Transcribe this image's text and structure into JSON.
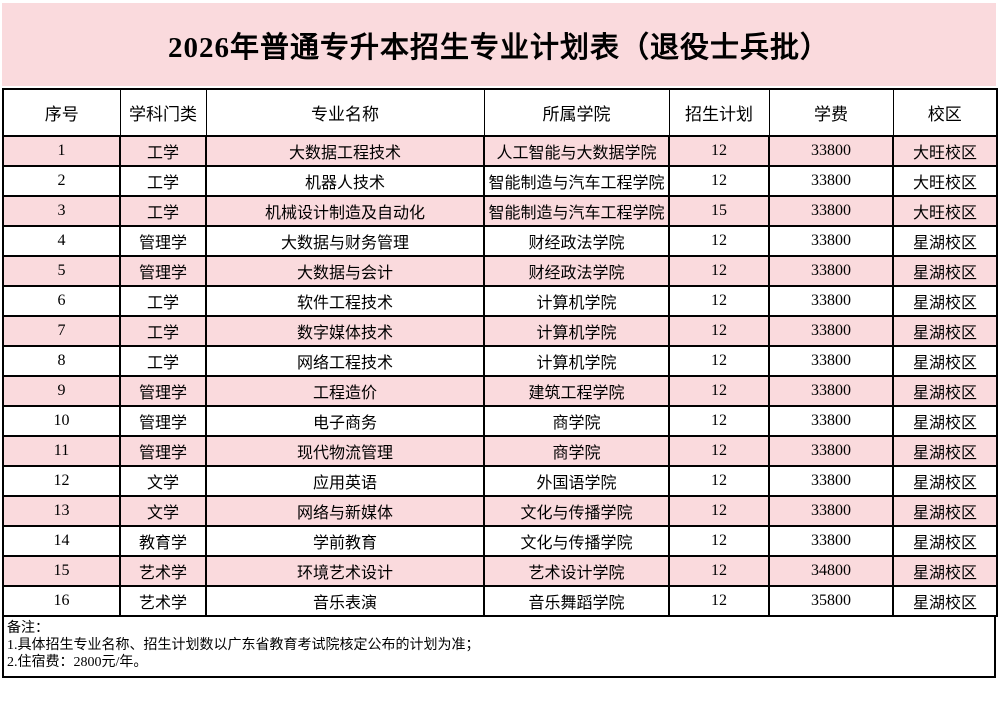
{
  "page": {
    "title": "2026年普通专升本招生专业计划表（退役士兵批）"
  },
  "colors": {
    "banner_pink": "#fadadd",
    "row_stripe_pink": "#fadadd",
    "grid_line": "#000000"
  },
  "table": {
    "columns": [
      "序号",
      "学科门类",
      "专业名称",
      "所属学院",
      "招生计划",
      "学费",
      "校区"
    ],
    "rows": [
      [
        "1",
        "工学",
        "大数据工程技术",
        "人工智能与大数据学院",
        "12",
        "33800",
        "大旺校区"
      ],
      [
        "2",
        "工学",
        "机器人技术",
        "智能制造与汽车工程学院",
        "12",
        "33800",
        "大旺校区"
      ],
      [
        "3",
        "工学",
        "机械设计制造及自动化",
        "智能制造与汽车工程学院",
        "15",
        "33800",
        "大旺校区"
      ],
      [
        "4",
        "管理学",
        "大数据与财务管理",
        "财经政法学院",
        "12",
        "33800",
        "星湖校区"
      ],
      [
        "5",
        "管理学",
        "大数据与会计",
        "财经政法学院",
        "12",
        "33800",
        "星湖校区"
      ],
      [
        "6",
        "工学",
        "软件工程技术",
        "计算机学院",
        "12",
        "33800",
        "星湖校区"
      ],
      [
        "7",
        "工学",
        "数字媒体技术",
        "计算机学院",
        "12",
        "33800",
        "星湖校区"
      ],
      [
        "8",
        "工学",
        "网络工程技术",
        "计算机学院",
        "12",
        "33800",
        "星湖校区"
      ],
      [
        "9",
        "管理学",
        "工程造价",
        "建筑工程学院",
        "12",
        "33800",
        "星湖校区"
      ],
      [
        "10",
        "管理学",
        "电子商务",
        "商学院",
        "12",
        "33800",
        "星湖校区"
      ],
      [
        "11",
        "管理学",
        "现代物流管理",
        "商学院",
        "12",
        "33800",
        "星湖校区"
      ],
      [
        "12",
        "文学",
        "应用英语",
        "外国语学院",
        "12",
        "33800",
        "星湖校区"
      ],
      [
        "13",
        "文学",
        "网络与新媒体",
        "文化与传播学院",
        "12",
        "33800",
        "星湖校区"
      ],
      [
        "14",
        "教育学",
        "学前教育",
        "文化与传播学院",
        "12",
        "33800",
        "星湖校区"
      ],
      [
        "15",
        "艺术学",
        "环境艺术设计",
        "艺术设计学院",
        "12",
        "34800",
        "星湖校区"
      ],
      [
        "16",
        "艺术学",
        "音乐表演",
        "音乐舞蹈学院",
        "12",
        "35800",
        "星湖校区"
      ]
    ]
  },
  "notes": {
    "label": "备注：",
    "items": [
      "1.具体招生专业名称、招生计划数以广东省教育考试院核定公布的计划为准；",
      "2.住宿费：2800元/年。"
    ]
  }
}
